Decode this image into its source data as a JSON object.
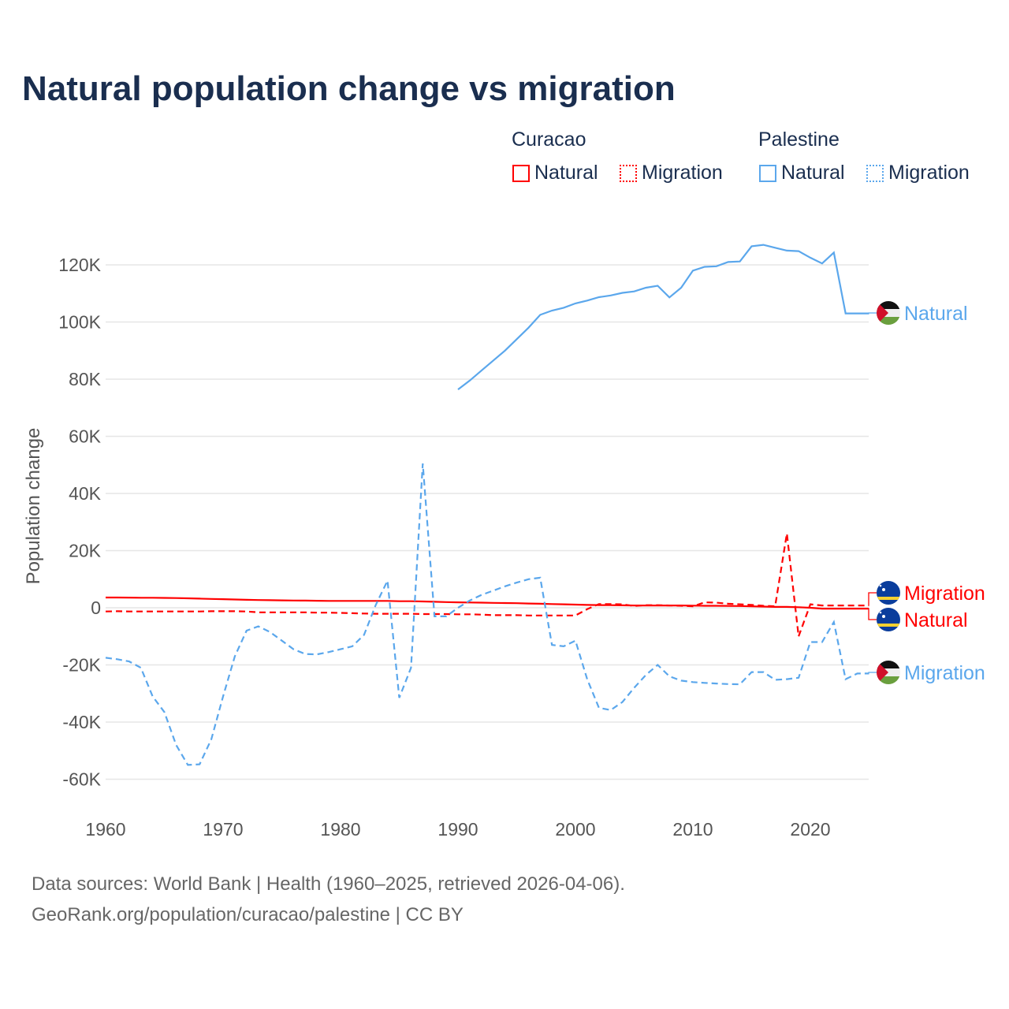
{
  "chart_data": {
    "type": "line",
    "title": "Natural population change vs migration",
    "ylabel": "Population change",
    "xlabel": "",
    "xlim": [
      1960,
      2025
    ],
    "ylim": [
      -70000,
      130000
    ],
    "yticks": [
      -60000,
      -40000,
      -20000,
      0,
      20000,
      40000,
      60000,
      80000,
      100000,
      120000
    ],
    "ytick_labels": [
      "-60K",
      "-40K",
      "-20K",
      "0",
      "20K",
      "40K",
      "60K",
      "80K",
      "100K",
      "120K"
    ],
    "xticks": [
      1960,
      1970,
      1980,
      1990,
      2000,
      2010,
      2020
    ],
    "xtick_labels": [
      "1960",
      "1970",
      "1980",
      "1990",
      "2000",
      "2010",
      "2020"
    ],
    "grid": true,
    "legend": {
      "placement": "top-right",
      "groups": [
        {
          "title": "Curacao",
          "items": [
            "Natural",
            "Migration"
          ]
        },
        {
          "title": "Palestine",
          "items": [
            "Natural",
            "Migration"
          ]
        }
      ]
    },
    "series": [
      {
        "name": "Curacao Natural",
        "country": "Curacao",
        "kind": "Natural",
        "label": "Natural",
        "color": "#ff0000",
        "dash": false,
        "start": 1960,
        "values": [
          3600,
          3600,
          3550,
          3500,
          3500,
          3450,
          3400,
          3300,
          3200,
          3100,
          3000,
          2900,
          2800,
          2700,
          2650,
          2600,
          2550,
          2500,
          2450,
          2400,
          2400,
          2400,
          2400,
          2400,
          2400,
          2300,
          2300,
          2200,
          2100,
          2000,
          1900,
          1850,
          1800,
          1700,
          1650,
          1600,
          1500,
          1400,
          1300,
          1200,
          1100,
          1000,
          950,
          900,
          850,
          800,
          800,
          800,
          800,
          800,
          750,
          700,
          700,
          650,
          600,
          500,
          400,
          300,
          300,
          200,
          0,
          -300,
          -300,
          -300,
          -300,
          -300
        ]
      },
      {
        "name": "Curacao Migration",
        "country": "Curacao",
        "kind": "Migration",
        "label": "Migration",
        "color": "#ff0000",
        "dash": true,
        "start": 1960,
        "values": [
          -1300,
          -1200,
          -1300,
          -1300,
          -1300,
          -1300,
          -1300,
          -1300,
          -1300,
          -1200,
          -1200,
          -1200,
          -1300,
          -1600,
          -1600,
          -1600,
          -1600,
          -1600,
          -1700,
          -1700,
          -1800,
          -1900,
          -2000,
          -2100,
          -2100,
          -2100,
          -2100,
          -2200,
          -2200,
          -2200,
          -2300,
          -2300,
          -2400,
          -2600,
          -2600,
          -2600,
          -2700,
          -2700,
          -2700,
          -2700,
          -2700,
          -500,
          1300,
          1300,
          1200,
          600,
          900,
          900,
          800,
          700,
          500,
          1900,
          1800,
          1400,
          1200,
          1000,
          700,
          500,
          26000,
          -10000,
          1200,
          800,
          800,
          800,
          800,
          800
        ]
      },
      {
        "name": "Palestine Natural",
        "country": "Palestine",
        "kind": "Natural",
        "label": "Natural",
        "color": "#5ba7ec",
        "dash": false,
        "start": 1990,
        "values": [
          76400,
          79500,
          83000,
          86500,
          90000,
          94000,
          98000,
          102500,
          104000,
          105000,
          106500,
          107500,
          108700,
          109300,
          110200,
          110700,
          112000,
          112700,
          108600,
          112000,
          118000,
          119300,
          119500,
          121000,
          121200,
          126500,
          127000,
          126000,
          125000,
          124800,
          122500,
          120500,
          124300,
          103000,
          103000,
          103000
        ]
      },
      {
        "name": "Palestine Migration",
        "country": "Palestine",
        "kind": "Migration",
        "label": "Migration",
        "color": "#5ba7ec",
        "dash": true,
        "start": 1960,
        "values": [
          -17500,
          -18000,
          -18800,
          -21000,
          -31000,
          -36500,
          -48000,
          -55000,
          -54800,
          -46000,
          -31000,
          -17000,
          -8000,
          -6500,
          -8500,
          -11500,
          -14500,
          -16200,
          -16300,
          -15500,
          -14500,
          -13500,
          -9500,
          1000,
          9500,
          -31500,
          -21000,
          50500,
          -3000,
          -3000,
          0,
          2500,
          4500,
          6000,
          7500,
          8800,
          10000,
          10500,
          -13000,
          -13500,
          -11500,
          -25000,
          -35000,
          -35800,
          -33000,
          -28000,
          -23500,
          -20000,
          -24000,
          -25500,
          -26000,
          -26300,
          -26500,
          -26700,
          -26800,
          -22500,
          -22500,
          -25200,
          -25000,
          -24500,
          -12000,
          -12000,
          -5000,
          -25000,
          -23000,
          -23000
        ]
      }
    ]
  },
  "legend_titles": {
    "curacao": "Curacao",
    "palestine": "Palestine"
  },
  "legend_labels": {
    "natural": "Natural",
    "migration": "Migration"
  },
  "source_line1": "Data sources: World Bank | Health (1960–2025, retrieved 2026-04-06).",
  "source_line2": "GeoRank.org/population/curacao/palestine | CC BY",
  "colors": {
    "curacao": "#ff0000",
    "palestine": "#5ba7ec",
    "title": "#1a2e4f"
  }
}
